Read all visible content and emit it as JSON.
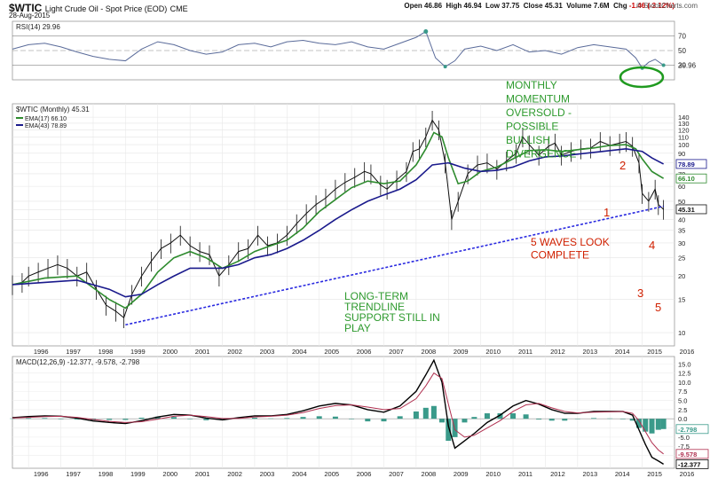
{
  "header": {
    "symbol": "$WTIC",
    "name": "Light Crude Oil - Spot Price (EOD)",
    "exchange": "CME",
    "date": "28-Aug-2015",
    "open_label": "Open",
    "open": "46.86",
    "high_label": "High",
    "high": "46.94",
    "low_label": "Low",
    "low": "37.75",
    "close_label": "Close",
    "close": "45.31",
    "volume_label": "Volume",
    "volume": "7.6M",
    "chg_label": "Chg",
    "chg": "-1.46 (-3.12%)",
    "chg_color": "#cc0000",
    "brand": "© StockCharts.com"
  },
  "chart_data": [
    {
      "type": "line",
      "panel": "rsi",
      "legend": "RSI(14) 29.96",
      "yticks": [
        30,
        50,
        70
      ],
      "ylim": [
        10,
        90
      ],
      "reference_lines": [
        30,
        50,
        70
      ],
      "last_value_label": "29.96",
      "x": [
        1995.5,
        1996,
        1996.5,
        1997,
        1997.5,
        1998,
        1998.5,
        1999,
        1999.5,
        2000,
        2000.5,
        2001,
        2001.5,
        2002,
        2002.5,
        2003,
        2003.5,
        2004,
        2004.5,
        2005,
        2005.5,
        2006,
        2006.5,
        2007,
        2007.5,
        2008,
        2008.3,
        2008.6,
        2008.9,
        2009.2,
        2009.5,
        2010,
        2010.5,
        2011,
        2011.5,
        2012,
        2012.5,
        2013,
        2013.5,
        2014,
        2014.5,
        2014.8,
        2015.0,
        2015.2,
        2015.4,
        2015.66
      ],
      "values": [
        52,
        58,
        60,
        55,
        48,
        42,
        38,
        36,
        52,
        62,
        58,
        50,
        45,
        48,
        58,
        60,
        55,
        62,
        64,
        60,
        58,
        62,
        55,
        52,
        60,
        68,
        76,
        40,
        28,
        36,
        52,
        56,
        50,
        58,
        48,
        50,
        45,
        54,
        58,
        55,
        52,
        40,
        26,
        34,
        38,
        29.96
      ],
      "color": "#5a6b9a",
      "fill_above": "#3a9a8a",
      "fill_below": "#3a9a8a"
    },
    {
      "type": "line",
      "panel": "price",
      "title": "$WTIC (Monthly) 45.31",
      "y_scale": "log",
      "yticks": [
        10,
        15,
        20,
        25,
        30,
        35,
        40,
        45,
        50,
        60,
        70,
        80,
        90,
        100,
        110,
        120,
        130,
        140
      ],
      "ylim": [
        8.5,
        165
      ],
      "xticks": [
        "1996",
        "1997",
        "1998",
        "1999",
        "2000",
        "2001",
        "2002",
        "2003",
        "2004",
        "2005",
        "2006",
        "2007",
        "2008",
        "2009",
        "2010",
        "2011",
        "2012",
        "2013",
        "2014",
        "2015",
        "2016"
      ],
      "series": [
        {
          "name": "$WTIC (Monthly) 45.31",
          "color": "#111111",
          "x": [
            1995.5,
            1995.8,
            1996.0,
            1996.3,
            1996.6,
            1996.9,
            1997.2,
            1997.5,
            1997.8,
            1998.1,
            1998.4,
            1998.7,
            1998.95,
            1999.2,
            1999.5,
            1999.8,
            2000.1,
            2000.4,
            2000.7,
            2001.0,
            2001.3,
            2001.6,
            2001.9,
            2002.2,
            2002.5,
            2002.8,
            2003.1,
            2003.4,
            2003.7,
            2004.0,
            2004.3,
            2004.6,
            2004.9,
            2005.2,
            2005.5,
            2005.8,
            2006.1,
            2006.4,
            2006.6,
            2006.9,
            2007.1,
            2007.4,
            2007.7,
            2007.9,
            2008.1,
            2008.3,
            2008.5,
            2008.7,
            2008.9,
            2009.1,
            2009.3,
            2009.6,
            2009.9,
            2010.2,
            2010.5,
            2010.8,
            2011.1,
            2011.3,
            2011.5,
            2011.8,
            2012.1,
            2012.3,
            2012.5,
            2012.8,
            2013.1,
            2013.4,
            2013.7,
            2014.0,
            2014.3,
            2014.5,
            2014.7,
            2014.9,
            2015.0,
            2015.2,
            2015.4,
            2015.5,
            2015.66
          ],
          "values": [
            18,
            18.5,
            20,
            21,
            22,
            23,
            22,
            20,
            21,
            17,
            14,
            13,
            12,
            16,
            20,
            24,
            28,
            30,
            33,
            29,
            27,
            26,
            20,
            23,
            27,
            28,
            33,
            29,
            30,
            33,
            38,
            43,
            48,
            52,
            58,
            63,
            67,
            72,
            70,
            61,
            58,
            65,
            72,
            92,
            95,
            110,
            135,
            120,
            80,
            40,
            50,
            70,
            78,
            80,
            74,
            82,
            90,
            110,
            100,
            88,
            98,
            102,
            88,
            92,
            95,
            96,
            104,
            99,
            102,
            104,
            98,
            80,
            55,
            50,
            58,
            48,
            45.31
          ]
        },
        {
          "name": "EMA(17) 66.10",
          "color": "#2e8b2e",
          "x": [
            1995.5,
            1996.5,
            1997.5,
            1998.5,
            1999.0,
            1999.5,
            2000.0,
            2000.5,
            2001.0,
            2001.5,
            2002.0,
            2002.5,
            2003.0,
            2003.5,
            2004.0,
            2004.5,
            2005.0,
            2005.5,
            2006.0,
            2006.5,
            2007.0,
            2007.5,
            2008.0,
            2008.3,
            2008.55,
            2008.8,
            2009.0,
            2009.3,
            2009.6,
            2010.0,
            2010.5,
            2011.0,
            2011.5,
            2012.0,
            2012.5,
            2013.0,
            2013.5,
            2014.0,
            2014.5,
            2014.8,
            2015.0,
            2015.3,
            2015.66
          ],
          "values": [
            18,
            19.5,
            20,
            15,
            13.5,
            16,
            21,
            25,
            27,
            25,
            22,
            24,
            27,
            29,
            31,
            36,
            44,
            51,
            59,
            64,
            62,
            64,
            78,
            95,
            116,
            110,
            85,
            62,
            64,
            72,
            76,
            84,
            93,
            94,
            92,
            94,
            96,
            99,
            100,
            95,
            84,
            72,
            66.1
          ]
        },
        {
          "name": "EMA(43) 78.89",
          "color": "#1a1a8c",
          "x": [
            1995.5,
            1996.5,
            1997.5,
            1998.5,
            1999.0,
            1999.5,
            2000.0,
            2000.5,
            2001.0,
            2001.5,
            2002.0,
            2002.5,
            2003.0,
            2003.5,
            2004.0,
            2004.5,
            2005.0,
            2005.5,
            2006.0,
            2006.5,
            2007.0,
            2007.5,
            2008.0,
            2008.5,
            2009.0,
            2009.5,
            2010.0,
            2010.5,
            2011.0,
            2011.5,
            2012.0,
            2012.5,
            2013.0,
            2013.5,
            2014.0,
            2014.5,
            2015.0,
            2015.3,
            2015.66
          ],
          "values": [
            18,
            18.5,
            19,
            17,
            15.5,
            16,
            18,
            20,
            22,
            22,
            22,
            23,
            25,
            26,
            28,
            31,
            35,
            40,
            45,
            50,
            54,
            58,
            65,
            78,
            80,
            75,
            72,
            73,
            76,
            82,
            86,
            87,
            89,
            91,
            93,
            95,
            92,
            85,
            78.89
          ]
        },
        {
          "name": "Trendline",
          "color": "#2a2ae0",
          "dashed": true,
          "x": [
            1999.0,
            2015.66
          ],
          "values": [
            11,
            47
          ]
        }
      ],
      "right_labels": [
        {
          "text": "78.89",
          "value": 78.89,
          "color": "#1a1a8c"
        },
        {
          "text": "66.10",
          "value": 66.1,
          "color": "#2e8b2e"
        },
        {
          "text": "45.31",
          "value": 45.31,
          "color": "#111111"
        }
      ],
      "annotations": [
        {
          "text": "MONTHLY\nMOMENTUM\nOVERSOLD -\nPOSSIBLE\nBULLISH\nDIVERGENCE",
          "color": "#2e9a2e"
        },
        {
          "text": "5 WAVES LOOK\nCOMPLETE",
          "color": "#d02000"
        },
        {
          "text": "LONG-TERM\nTRENDLINE\nSUPPORT STILL IN\nPLAY",
          "color": "#2e9a2e"
        },
        {
          "text": "1",
          "color": "#d02000"
        },
        {
          "text": "2",
          "color": "#d02000"
        },
        {
          "text": "3",
          "color": "#d02000"
        },
        {
          "text": "4",
          "color": "#d02000"
        },
        {
          "text": "5",
          "color": "#d02000"
        }
      ]
    },
    {
      "type": "line",
      "panel": "macd",
      "legend": "MACD(12,26,9) -12.377, -9.578, -2.798",
      "yticks": [
        -10.0,
        -7.5,
        -5.0,
        -2.5,
        0.0,
        2.5,
        5.0,
        7.5,
        10.0,
        12.5,
        15.0
      ],
      "ylim": [
        -13.5,
        17
      ],
      "xticks": [
        "1996",
        "1997",
        "1998",
        "1999",
        "2000",
        "2001",
        "2002",
        "2003",
        "2004",
        "2005",
        "2006",
        "2007",
        "2008",
        "2009",
        "2010",
        "2011",
        "2012",
        "2013",
        "2014",
        "2015",
        "2016"
      ],
      "x": [
        1995.5,
        1996,
        1996.5,
        1997,
        1997.5,
        1998,
        1998.5,
        1999,
        1999.5,
        2000,
        2000.5,
        2001,
        2001.5,
        2002,
        2002.5,
        2003,
        2003.5,
        2004,
        2004.5,
        2005,
        2005.5,
        2006,
        2006.5,
        2007,
        2007.5,
        2008,
        2008.3,
        2008.55,
        2008.8,
        2009.0,
        2009.2,
        2009.5,
        2009.8,
        2010.2,
        2010.6,
        2011.0,
        2011.4,
        2011.8,
        2012.2,
        2012.6,
        2013.0,
        2013.5,
        2014.0,
        2014.4,
        2014.7,
        2014.9,
        2015.1,
        2015.3,
        2015.5,
        2015.66
      ],
      "series": [
        {
          "name": "MACD(12,26,9)",
          "color": "#000000",
          "values": [
            0.3,
            0.6,
            0.8,
            0.7,
            0.2,
            -0.6,
            -1.0,
            -1.3,
            -0.5,
            0.5,
            1.2,
            1.0,
            0.2,
            -0.3,
            0.3,
            0.8,
            0.8,
            1.2,
            2.2,
            3.5,
            4.2,
            3.8,
            2.5,
            1.8,
            3.5,
            7.5,
            12.0,
            16.0,
            10.0,
            -2.0,
            -8.0,
            -6.0,
            -4.0,
            -1.0,
            1.0,
            3.5,
            5.0,
            4.0,
            2.5,
            1.5,
            1.5,
            2.0,
            2.0,
            2.0,
            1.0,
            -3.0,
            -7.0,
            -10.5,
            -11.5,
            -12.377
          ]
        },
        {
          "name": "Signal",
          "color": "#b03050",
          "values": [
            0.2,
            0.4,
            0.6,
            0.7,
            0.4,
            -0.2,
            -0.7,
            -1.0,
            -0.8,
            -0.1,
            0.7,
            1.0,
            0.6,
            0.1,
            0.1,
            0.5,
            0.7,
            1.0,
            1.7,
            2.8,
            3.6,
            3.8,
            3.2,
            2.5,
            2.8,
            5.5,
            9.0,
            12.5,
            11.0,
            4.0,
            -3.0,
            -5.0,
            -4.5,
            -2.5,
            -0.5,
            2.0,
            3.8,
            4.2,
            3.0,
            2.0,
            1.6,
            1.8,
            1.9,
            2.0,
            1.5,
            -0.5,
            -3.5,
            -6.5,
            -8.5,
            -9.578
          ]
        },
        {
          "name": "Histogram",
          "color": "#3a9a8a",
          "bars": true,
          "values": [
            0.1,
            0.2,
            0.2,
            0,
            -0.2,
            -0.4,
            -0.3,
            -0.3,
            0.3,
            0.6,
            0.5,
            0,
            -0.4,
            -0.4,
            0.2,
            0.3,
            0.1,
            0.2,
            0.5,
            0.7,
            0.6,
            0,
            -0.7,
            -0.7,
            0.7,
            2.0,
            3.0,
            3.5,
            -1.0,
            -6.0,
            -5.0,
            -1.0,
            0.5,
            1.5,
            1.5,
            1.5,
            1.2,
            -0.2,
            -0.5,
            -0.5,
            -0.1,
            0.2,
            0.1,
            0,
            -0.5,
            -2.5,
            -3.5,
            -4.0,
            -3.0,
            -2.798
          ]
        }
      ],
      "right_labels": [
        {
          "text": "-2.798",
          "value": -2.798,
          "color": "#3a9a8a"
        },
        {
          "text": "-9.578",
          "value": -9.578,
          "color": "#b03050"
        },
        {
          "text": "-12.377",
          "value": -12.377,
          "color": "#000000"
        }
      ]
    }
  ]
}
